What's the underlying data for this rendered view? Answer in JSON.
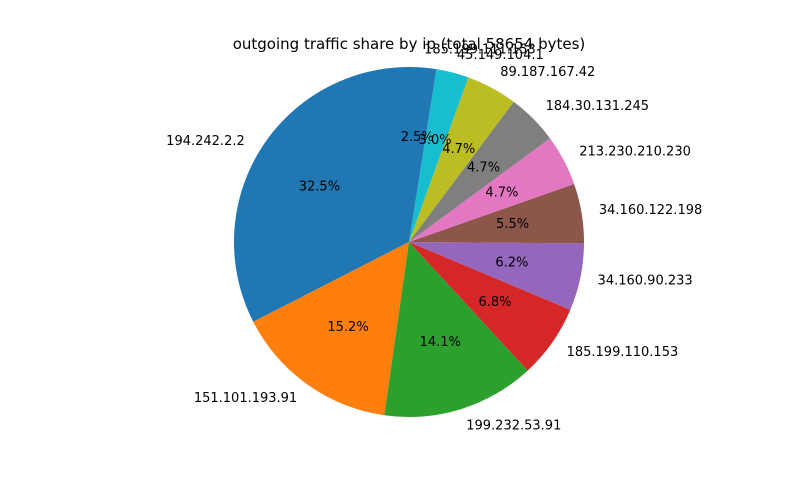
{
  "chart_data": {
    "type": "pie",
    "title": "outgoing traffic share by ip (total 58654 bytes)",
    "start_angle_deg": 90,
    "direction": "counterclockwise",
    "slices": [
      {
        "label": "194.242.2.2",
        "value": 32.5,
        "pct_label": "32.5%",
        "color": "#1f77b4"
      },
      {
        "label": "151.101.193.91",
        "value": 15.2,
        "pct_label": "15.2%",
        "color": "#ff7f0e"
      },
      {
        "label": "199.232.53.91",
        "value": 14.1,
        "pct_label": "14.1%",
        "color": "#2ca02c"
      },
      {
        "label": "185.199.110.153",
        "value": 6.8,
        "pct_label": "6.8%",
        "color": "#d62728"
      },
      {
        "label": "34.160.90.233",
        "value": 6.2,
        "pct_label": "6.2%",
        "color": "#9467bd"
      },
      {
        "label": "34.160.122.198",
        "value": 5.5,
        "pct_label": "5.5%",
        "color": "#8c564b"
      },
      {
        "label": "213.230.210.230",
        "value": 4.7,
        "pct_label": "4.7%",
        "color": "#e377c2"
      },
      {
        "label": "184.30.131.245",
        "value": 4.7,
        "pct_label": "4.7%",
        "color": "#7f7f7f"
      },
      {
        "label": "89.187.167.42",
        "value": 4.7,
        "pct_label": "4.7%",
        "color": "#bcbd22"
      },
      {
        "label": "45.149.104.1",
        "value": 3.0,
        "pct_label": "3.0%",
        "color": "#17becf"
      },
      {
        "label": "185.199.111.153",
        "value": 2.5,
        "pct_label": "2.5%",
        "color": "#1f77b4"
      }
    ]
  }
}
